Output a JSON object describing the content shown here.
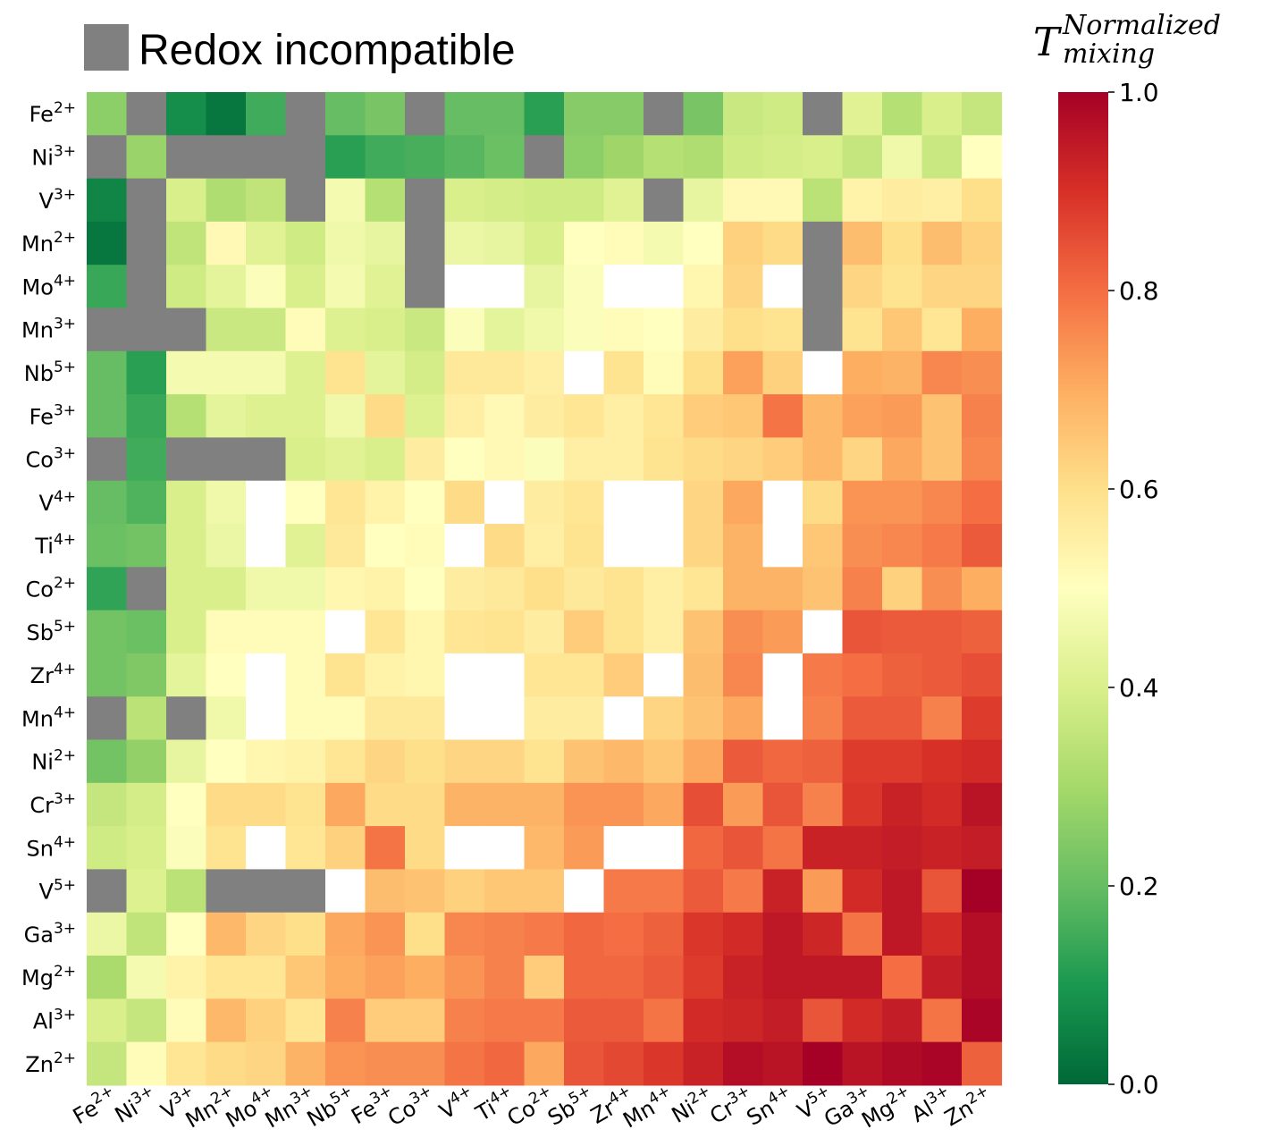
{
  "chart_data": {
    "type": "heatmap",
    "legend": {
      "label": "Redox incompatible",
      "color": "#808080"
    },
    "colorbar": {
      "title_main": "T",
      "title_sup": "Normalized",
      "title_sub": "mixing",
      "ticks": [
        "0.0",
        "0.2",
        "0.4",
        "0.6",
        "0.8",
        "1.0"
      ],
      "range": [
        0,
        1
      ],
      "colormap": "RdYlGn_r"
    },
    "rows": [
      "Fe2+",
      "Ni3+",
      "V3+",
      "Mn2+",
      "Mo4+",
      "Mn3+",
      "Nb5+",
      "Fe3+",
      "Co3+",
      "V4+",
      "Ti4+",
      "Co2+",
      "Sb5+",
      "Zr4+",
      "Mn4+",
      "Ni2+",
      "Cr3+",
      "Sn4+",
      "V5+",
      "Ga3+",
      "Mg2+",
      "Al3+",
      "Zn2+"
    ],
    "cols": [
      "Fe2+",
      "Ni3+",
      "V3+",
      "Mn2+",
      "Mo4+",
      "Mn3+",
      "Nb5+",
      "Fe3+",
      "Co3+",
      "V4+",
      "Ti4+",
      "Co2+",
      "Sb5+",
      "Zr4+",
      "Mn4+",
      "Ni2+",
      "Cr3+",
      "Sn4+",
      "V5+",
      "Ga3+",
      "Mg2+",
      "Al3+",
      "Zn2+"
    ],
    "row_labels": [
      {
        "base": "Fe",
        "charge": "2+"
      },
      {
        "base": "Ni",
        "charge": "3+"
      },
      {
        "base": "V",
        "charge": "3+"
      },
      {
        "base": "Mn",
        "charge": "2+"
      },
      {
        "base": "Mo",
        "charge": "4+"
      },
      {
        "base": "Mn",
        "charge": "3+"
      },
      {
        "base": "Nb",
        "charge": "5+"
      },
      {
        "base": "Fe",
        "charge": "3+"
      },
      {
        "base": "Co",
        "charge": "3+"
      },
      {
        "base": "V",
        "charge": "4+"
      },
      {
        "base": "Ti",
        "charge": "4+"
      },
      {
        "base": "Co",
        "charge": "2+"
      },
      {
        "base": "Sb",
        "charge": "5+"
      },
      {
        "base": "Zr",
        "charge": "4+"
      },
      {
        "base": "Mn",
        "charge": "4+"
      },
      {
        "base": "Ni",
        "charge": "2+"
      },
      {
        "base": "Cr",
        "charge": "3+"
      },
      {
        "base": "Sn",
        "charge": "4+"
      },
      {
        "base": "V",
        "charge": "5+"
      },
      {
        "base": "Ga",
        "charge": "3+"
      },
      {
        "base": "Mg",
        "charge": "2+"
      },
      {
        "base": "Al",
        "charge": "3+"
      },
      {
        "base": "Zn",
        "charge": "2+"
      }
    ],
    "col_labels": [
      {
        "base": "Fe",
        "charge": "2+"
      },
      {
        "base": "Ni",
        "charge": "3+"
      },
      {
        "base": "V",
        "charge": "3+"
      },
      {
        "base": "Mn",
        "charge": "2+"
      },
      {
        "base": "Mo",
        "charge": "4+"
      },
      {
        "base": "Mn",
        "charge": "3+"
      },
      {
        "base": "Nb",
        "charge": "5+"
      },
      {
        "base": "Fe",
        "charge": "3+"
      },
      {
        "base": "Co",
        "charge": "3+"
      },
      {
        "base": "V",
        "charge": "4+"
      },
      {
        "base": "Ti",
        "charge": "4+"
      },
      {
        "base": "Co",
        "charge": "2+"
      },
      {
        "base": "Sb",
        "charge": "5+"
      },
      {
        "base": "Zr",
        "charge": "4+"
      },
      {
        "base": "Mn",
        "charge": "4+"
      },
      {
        "base": "Ni",
        "charge": "2+"
      },
      {
        "base": "Cr",
        "charge": "3+"
      },
      {
        "base": "Sn",
        "charge": "4+"
      },
      {
        "base": "V",
        "charge": "5+"
      },
      {
        "base": "Ga",
        "charge": "3+"
      },
      {
        "base": "Mg",
        "charge": "2+"
      },
      {
        "base": "Al",
        "charge": "3+"
      },
      {
        "base": "Zn",
        "charge": "2+"
      }
    ],
    "value_encoding": "numbers are normalized T_mixing values; \"X\" = redox incompatible (gray); null = blank (white)",
    "values": [
      [
        0.26,
        "X",
        0.08,
        0.03,
        0.15,
        "X",
        0.2,
        0.23,
        "X",
        0.2,
        0.2,
        0.12,
        0.25,
        0.25,
        "X",
        0.23,
        0.37,
        0.38,
        "X",
        0.42,
        0.33,
        0.4,
        0.36
      ],
      [
        "X",
        0.28,
        "X",
        "X",
        "X",
        "X",
        0.12,
        0.15,
        0.16,
        0.18,
        0.21,
        "X",
        0.26,
        0.29,
        0.33,
        0.32,
        0.38,
        0.39,
        0.4,
        0.36,
        0.46,
        0.37,
        0.5
      ],
      [
        0.06,
        "X",
        0.4,
        0.32,
        0.35,
        "X",
        0.47,
        0.33,
        "X",
        0.4,
        0.39,
        0.38,
        0.38,
        0.42,
        "X",
        0.44,
        0.52,
        0.52,
        0.34,
        0.54,
        0.56,
        0.55,
        0.6
      ],
      [
        0.03,
        "X",
        0.35,
        0.52,
        0.42,
        0.38,
        0.46,
        0.44,
        "X",
        0.45,
        0.44,
        0.4,
        0.5,
        0.51,
        0.47,
        0.5,
        0.63,
        0.61,
        "X",
        0.67,
        0.6,
        0.67,
        0.63
      ],
      [
        0.14,
        "X",
        0.38,
        0.43,
        0.49,
        0.4,
        0.47,
        0.42,
        "X",
        null,
        null,
        0.44,
        0.49,
        null,
        null,
        0.53,
        0.62,
        null,
        "X",
        0.62,
        0.59,
        0.62,
        0.62
      ],
      [
        "X",
        "X",
        "X",
        0.37,
        0.37,
        0.51,
        0.41,
        0.4,
        0.37,
        0.49,
        0.43,
        0.46,
        0.49,
        0.51,
        0.5,
        0.56,
        0.6,
        0.59,
        "X",
        0.59,
        0.65,
        0.58,
        0.7
      ],
      [
        0.2,
        0.12,
        0.47,
        0.47,
        0.47,
        0.41,
        0.59,
        0.43,
        0.39,
        0.57,
        0.57,
        0.55,
        null,
        0.59,
        0.51,
        0.6,
        0.72,
        0.63,
        null,
        0.7,
        0.69,
        0.76,
        0.75
      ],
      [
        0.2,
        0.14,
        0.33,
        0.43,
        0.41,
        0.41,
        0.46,
        0.61,
        0.41,
        0.55,
        0.52,
        0.56,
        0.58,
        0.55,
        0.58,
        0.64,
        0.65,
        0.79,
        0.68,
        0.72,
        0.73,
        0.66,
        0.77
      ],
      [
        "X",
        0.15,
        "X",
        "X",
        "X",
        0.4,
        0.42,
        0.4,
        0.56,
        0.5,
        0.52,
        0.49,
        0.55,
        0.55,
        0.59,
        0.61,
        0.62,
        0.64,
        0.68,
        0.62,
        0.71,
        0.66,
        0.76
      ],
      [
        0.2,
        0.17,
        0.4,
        0.46,
        null,
        0.5,
        0.58,
        0.54,
        0.5,
        0.61,
        null,
        0.56,
        0.58,
        null,
        null,
        0.62,
        0.71,
        null,
        0.61,
        0.74,
        0.74,
        0.76,
        0.8
      ],
      [
        0.21,
        0.22,
        0.4,
        0.45,
        null,
        0.42,
        0.57,
        0.5,
        0.51,
        null,
        0.61,
        0.55,
        0.59,
        null,
        null,
        0.62,
        0.69,
        null,
        0.65,
        0.75,
        0.76,
        0.78,
        0.83
      ],
      [
        0.13,
        "X",
        0.4,
        0.4,
        0.46,
        0.46,
        0.53,
        0.54,
        0.5,
        0.56,
        0.57,
        0.6,
        0.57,
        0.59,
        0.55,
        0.58,
        0.69,
        0.69,
        0.66,
        0.77,
        0.63,
        0.75,
        0.7
      ],
      [
        0.22,
        0.21,
        0.4,
        0.51,
        0.51,
        0.51,
        null,
        0.58,
        0.53,
        0.58,
        0.59,
        0.56,
        0.64,
        0.59,
        0.55,
        0.66,
        0.75,
        0.73,
        null,
        0.84,
        0.83,
        0.83,
        0.82
      ],
      [
        0.22,
        0.24,
        0.43,
        0.5,
        null,
        0.51,
        0.59,
        0.54,
        0.53,
        null,
        null,
        0.58,
        0.58,
        0.64,
        null,
        0.67,
        0.76,
        null,
        0.78,
        0.8,
        0.82,
        0.83,
        0.85
      ],
      [
        "X",
        0.34,
        "X",
        0.46,
        null,
        0.51,
        0.51,
        0.57,
        0.57,
        null,
        null,
        0.56,
        0.56,
        null,
        0.62,
        0.66,
        0.71,
        null,
        0.77,
        0.83,
        0.83,
        0.77,
        0.88
      ],
      [
        0.22,
        0.27,
        0.44,
        0.5,
        0.53,
        0.54,
        0.58,
        0.62,
        0.6,
        0.62,
        0.62,
        0.59,
        0.66,
        0.68,
        0.65,
        0.71,
        0.83,
        0.81,
        0.82,
        0.88,
        0.88,
        0.9,
        0.91
      ],
      [
        0.36,
        0.39,
        0.5,
        0.61,
        0.61,
        0.59,
        0.71,
        0.61,
        0.61,
        0.69,
        0.69,
        0.69,
        0.74,
        0.74,
        0.71,
        0.85,
        0.73,
        0.84,
        0.77,
        0.89,
        0.93,
        0.91,
        0.96
      ],
      [
        0.38,
        0.4,
        0.49,
        0.59,
        null,
        0.58,
        0.63,
        0.79,
        0.61,
        null,
        null,
        0.68,
        0.73,
        null,
        null,
        0.81,
        0.84,
        0.79,
        0.93,
        0.93,
        0.94,
        0.93,
        0.94
      ],
      [
        "X",
        0.41,
        0.34,
        "X",
        "X",
        "X",
        null,
        0.67,
        0.66,
        0.63,
        0.65,
        0.65,
        null,
        0.78,
        0.78,
        0.83,
        0.78,
        0.93,
        0.73,
        0.91,
        0.95,
        0.84,
        1.0
      ],
      [
        0.45,
        0.35,
        0.5,
        0.68,
        0.62,
        0.6,
        0.71,
        0.74,
        0.6,
        0.76,
        0.77,
        0.78,
        0.81,
        0.8,
        0.82,
        0.89,
        0.91,
        0.95,
        0.92,
        0.79,
        0.95,
        0.91,
        0.97
      ],
      [
        0.31,
        0.47,
        0.54,
        0.58,
        0.58,
        0.65,
        0.7,
        0.72,
        0.7,
        0.74,
        0.77,
        0.64,
        0.81,
        0.81,
        0.83,
        0.88,
        0.93,
        0.95,
        0.95,
        0.95,
        0.8,
        0.94,
        0.97
      ],
      [
        0.4,
        0.36,
        0.51,
        0.68,
        0.63,
        0.58,
        0.77,
        0.64,
        0.64,
        0.77,
        0.78,
        0.78,
        0.83,
        0.83,
        0.79,
        0.91,
        0.92,
        0.94,
        0.84,
        0.91,
        0.94,
        0.79,
        0.99
      ],
      [
        0.36,
        0.51,
        0.58,
        0.61,
        0.62,
        0.69,
        0.74,
        0.75,
        0.75,
        0.79,
        0.81,
        0.71,
        0.84,
        0.86,
        0.89,
        0.93,
        0.97,
        0.96,
        1.0,
        0.96,
        0.98,
        0.99,
        0.82
      ]
    ]
  }
}
